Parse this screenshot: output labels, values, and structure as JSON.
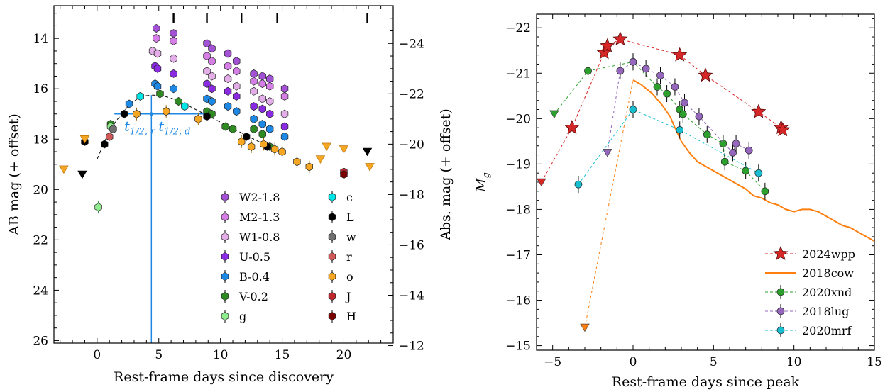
{
  "chart_data": [
    {
      "type": "scatter",
      "xlabel": "Rest-frame days since discovery",
      "ylabel": "AB mag (+ offset)",
      "y2label": "Abs. mag (+ offset)",
      "xlim": [
        -3.5,
        24
      ],
      "ylim": [
        26.1,
        12.7
      ],
      "y2lim": [
        -12.1,
        -25.5
      ],
      "y_inverted": true,
      "xticks": [
        0,
        5,
        10,
        15,
        20
      ],
      "yticks": [
        14,
        16,
        18,
        20,
        22,
        24,
        26
      ],
      "y2ticks": [
        -24,
        -22,
        -20,
        -18,
        -16,
        -14,
        -12
      ],
      "top_markers_x": [
        6.2,
        8.9,
        11.7,
        14.6,
        21.9
      ],
      "template_curve": [
        [
          0,
          18.8
        ],
        [
          0.7,
          18.0
        ],
        [
          1.5,
          17.3
        ],
        [
          2.5,
          16.7
        ],
        [
          3.5,
          16.3
        ],
        [
          4.5,
          16.25
        ],
        [
          5.5,
          16.3
        ],
        [
          6.5,
          16.45
        ],
        [
          7.5,
          16.7
        ],
        [
          8.5,
          16.95
        ],
        [
          9.5,
          17.2
        ],
        [
          10.5,
          17.45
        ],
        [
          11.5,
          17.7
        ],
        [
          12.5,
          17.95
        ],
        [
          13.5,
          18.2
        ],
        [
          14.5,
          18.45
        ]
      ],
      "annotations": {
        "peak_x": 4.4,
        "half_level_mag": 17.0,
        "t_half_rise_x": 1.4,
        "t_half_decline_x": 8.9,
        "t_half_rise_label_main": "t",
        "t_half_rise_label_sub": "1/2, r",
        "t_half_decline_label_main": "t",
        "t_half_decline_label_sub": "1/2, d"
      },
      "legend": {
        "placement": "lower-right",
        "entries": [
          {
            "label": "W2-1.8",
            "color": "#a352d6"
          },
          {
            "label": "M2-1.3",
            "color": "#d57ee6"
          },
          {
            "label": "W1-0.8",
            "color": "#e3aee8"
          },
          {
            "label": "U-0.5",
            "color": "#8a2be2"
          },
          {
            "label": "B-0.4",
            "color": "#1e88e5"
          },
          {
            "label": "V-0.2",
            "color": "#2e8b22"
          },
          {
            "label": "g",
            "color": "#90ee90"
          },
          {
            "label": "c",
            "color": "#00e5e5"
          },
          {
            "label": "L",
            "color": "#000000"
          },
          {
            "label": "w",
            "color": "#707070"
          },
          {
            "label": "r",
            "color": "#d05a5a"
          },
          {
            "label": "o",
            "color": "#f5a623"
          },
          {
            "label": "J",
            "color": "#c0282d"
          },
          {
            "label": "H",
            "color": "#7a0000"
          }
        ]
      },
      "series": [
        {
          "name": "W2-1.8",
          "color": "#a352d6",
          "marker": "hexagon",
          "points": [
            [
              4.8,
              13.6
            ],
            [
              6.2,
              13.8
            ],
            [
              8.9,
              14.2
            ],
            [
              9.3,
              14.4
            ],
            [
              10.6,
              14.6
            ],
            [
              11.3,
              14.9
            ],
            [
              12.7,
              15.4
            ],
            [
              13.4,
              15.5
            ],
            [
              14.0,
              15.6
            ],
            [
              15.2,
              16.0
            ]
          ]
        },
        {
          "name": "M2-1.3",
          "color": "#d57ee6",
          "marker": "hexagon",
          "points": [
            [
              4.8,
              14.0
            ],
            [
              6.2,
              14.1
            ],
            [
              8.9,
              14.7
            ],
            [
              9.3,
              14.9
            ],
            [
              10.6,
              15.1
            ],
            [
              11.3,
              15.3
            ],
            [
              12.7,
              15.7
            ],
            [
              13.4,
              15.8
            ],
            [
              14.0,
              15.9
            ],
            [
              15.2,
              16.3
            ]
          ]
        },
        {
          "name": "W1-0.8",
          "color": "#e3aee8",
          "marker": "hexagon",
          "points": [
            [
              4.5,
              14.5
            ],
            [
              4.9,
              14.6
            ],
            [
              6.2,
              14.8
            ],
            [
              8.9,
              15.3
            ],
            [
              9.3,
              15.5
            ],
            [
              10.6,
              15.6
            ],
            [
              11.3,
              15.9
            ],
            [
              12.7,
              16.1
            ],
            [
              13.4,
              16.4
            ],
            [
              14.0,
              16.5
            ],
            [
              15.2,
              17.0
            ]
          ]
        },
        {
          "name": "U-0.5",
          "color": "#8a2be2",
          "marker": "hexagon",
          "points": [
            [
              4.7,
              15.1
            ],
            [
              4.9,
              15.2
            ],
            [
              6.2,
              15.4
            ],
            [
              8.9,
              15.8
            ],
            [
              9.3,
              16.0
            ],
            [
              10.6,
              16.1
            ],
            [
              11.3,
              16.3
            ],
            [
              12.7,
              16.7
            ],
            [
              13.4,
              16.8
            ],
            [
              14.0,
              17.0
            ],
            [
              15.2,
              17.5
            ]
          ]
        },
        {
          "name": "B-0.4",
          "color": "#1e88e5",
          "marker": "hexagon",
          "points": [
            [
              2.6,
              16.6
            ],
            [
              4.7,
              15.8
            ],
            [
              4.9,
              15.9
            ],
            [
              6.2,
              16.0
            ],
            [
              8.9,
              16.4
            ],
            [
              9.3,
              16.5
            ],
            [
              10.6,
              16.7
            ],
            [
              11.3,
              16.9
            ],
            [
              12.7,
              17.2
            ],
            [
              13.4,
              17.4
            ],
            [
              14.0,
              17.6
            ],
            [
              15.2,
              17.9
            ]
          ]
        },
        {
          "name": "V-0.2",
          "color": "#2e8b22",
          "marker": "hexagon",
          "points": [
            [
              1.1,
              17.4
            ],
            [
              5.1,
              16.2
            ],
            [
              6.6,
              16.5
            ],
            [
              8.9,
              16.9
            ],
            [
              9.3,
              17.0
            ],
            [
              10.4,
              17.5
            ],
            [
              11.0,
              17.6
            ],
            [
              12.7,
              17.6
            ],
            [
              13.4,
              17.8
            ],
            [
              14.0,
              18.3
            ]
          ]
        },
        {
          "name": "g",
          "color": "#90ee90",
          "marker": "hexagon",
          "points": [
            [
              0.1,
              20.7
            ],
            [
              1.1,
              17.5
            ]
          ]
        },
        {
          "name": "c",
          "color": "#00e5e5",
          "marker": "hexagon",
          "points": [
            [
              3.5,
              16.3
            ],
            [
              7.1,
              16.7
            ]
          ]
        },
        {
          "name": "L",
          "color": "#000000",
          "marker": "hexagon",
          "points": [
            [
              -1.0,
              18.1
            ],
            [
              0.6,
              18.2
            ],
            [
              2.2,
              17.0
            ],
            [
              8.9,
              17.1
            ],
            [
              12.1,
              17.9
            ],
            [
              13.8,
              18.3
            ]
          ]
        },
        {
          "name": "w",
          "color": "#707070",
          "marker": "hexagon",
          "points": [
            [
              1.3,
              17.6
            ]
          ]
        },
        {
          "name": "r",
          "color": "#d05a5a",
          "marker": "hexagon",
          "points": [
            [
              1.0,
              17.9
            ]
          ]
        },
        {
          "name": "o",
          "color": "#f5a623",
          "marker": "hexagon",
          "points": [
            [
              3.2,
              17.0
            ],
            [
              5.6,
              16.9
            ],
            [
              8.2,
              17.2
            ],
            [
              11.7,
              18.1
            ],
            [
              12.5,
              18.3
            ],
            [
              13.5,
              18.2
            ],
            [
              14.4,
              18.4
            ],
            [
              15.0,
              18.5
            ],
            [
              16.2,
              18.9
            ],
            [
              17.2,
              19.1
            ]
          ]
        },
        {
          "name": "J",
          "color": "#c0282d",
          "marker": "hexagon",
          "points": [
            [
              20.0,
              19.3
            ]
          ]
        },
        {
          "name": "H",
          "color": "#7a0000",
          "marker": "hexagon",
          "points": [
            [
              20.0,
              19.4
            ]
          ]
        },
        {
          "name": "o limits",
          "color": "#f5a623",
          "marker": "triangle-down",
          "points": [
            [
              -2.7,
              19.2
            ],
            [
              -1.0,
              18.0
            ],
            [
              18.1,
              18.8
            ],
            [
              18.6,
              18.3
            ],
            [
              20.0,
              18.4
            ],
            [
              22.1,
              19.1
            ]
          ]
        },
        {
          "name": "L limits",
          "color": "#000000",
          "marker": "triangle-down",
          "points": [
            [
              -1.2,
              19.4
            ],
            [
              21.9,
              18.5
            ]
          ]
        }
      ]
    },
    {
      "type": "line",
      "xlabel": "Rest-frame days since peak",
      "ylabel_main": "M",
      "ylabel_sub": "g",
      "xlim": [
        -6,
        15
      ],
      "ylim": [
        -14.9,
        -22.3
      ],
      "y_inverted": true,
      "xticks": [
        -5,
        0,
        5,
        10,
        15
      ],
      "yticks": [
        -15,
        -16,
        -17,
        -18,
        -19,
        -20,
        -21,
        -22
      ],
      "legend": {
        "placement": "lower-right",
        "entries": [
          {
            "label": "2024wpp",
            "color": "#d62728",
            "marker": "star",
            "style": "dashed"
          },
          {
            "label": "2018cow",
            "color": "#ff7f0e",
            "marker": "none",
            "style": "solid"
          },
          {
            "label": "2020xnd",
            "color": "#2ca02c",
            "marker": "circle",
            "style": "dashed"
          },
          {
            "label": "2018lug",
            "color": "#9467bd",
            "marker": "circle",
            "style": "dashed"
          },
          {
            "label": "2020mrf",
            "color": "#17becf",
            "marker": "circle",
            "style": "dashed"
          }
        ]
      },
      "series": [
        {
          "name": "2024wpp",
          "color": "#d62728",
          "marker": "star",
          "style": "dashed",
          "upper_limit_first": true,
          "x": [
            -5.7,
            -3.8,
            -1.8,
            -1.6,
            -0.8,
            2.9,
            4.5,
            7.8,
            9.2,
            9.3
          ],
          "y": [
            -18.6,
            -19.8,
            -21.45,
            -21.6,
            -21.75,
            -21.4,
            -20.95,
            -20.15,
            -19.8,
            -19.75
          ]
        },
        {
          "name": "2018cow",
          "color": "#ff7f0e",
          "marker": "none",
          "style": "solid",
          "x": [
            0.0,
            0.5,
            1.2,
            1.8,
            2.3,
            2.6,
            3.0,
            3.5,
            4.0,
            4.5,
            5.0,
            5.5,
            6.0,
            6.5,
            7.0,
            7.5,
            8.0,
            8.5,
            9.0,
            9.5,
            10.0,
            10.5,
            11.0,
            11.5,
            12.0,
            12.5,
            13.0,
            13.5,
            14.0,
            14.5,
            15.0
          ],
          "y": [
            -20.85,
            -20.75,
            -20.55,
            -20.3,
            -20.05,
            -19.8,
            -19.5,
            -19.25,
            -19.05,
            -18.95,
            -18.85,
            -18.75,
            -18.65,
            -18.55,
            -18.45,
            -18.3,
            -18.25,
            -18.15,
            -18.1,
            -18.0,
            -17.95,
            -18.0,
            -18.0,
            -17.95,
            -17.85,
            -17.75,
            -17.65,
            -17.6,
            -17.5,
            -17.4,
            -17.3
          ]
        },
        {
          "name": "2018cow early",
          "color": "#ff7f0e",
          "marker": "triangle-down",
          "style": "dashed",
          "x": [
            -3.0,
            0.0
          ],
          "y": [
            -15.4,
            -20.85
          ]
        },
        {
          "name": "2020xnd",
          "color": "#2ca02c",
          "marker": "circle",
          "style": "dashed",
          "upper_limit_first": true,
          "x": [
            -4.9,
            -2.8,
            0.0,
            1.5,
            2.1,
            2.9,
            3.1,
            4.6,
            5.6,
            5.7,
            7.0,
            8.2
          ],
          "y": [
            -20.1,
            -21.05,
            -21.25,
            -20.7,
            -20.55,
            -20.2,
            -20.1,
            -19.65,
            -19.45,
            -19.05,
            -18.85,
            -18.4
          ]
        },
        {
          "name": "2018lug",
          "color": "#9467bd",
          "marker": "circle",
          "style": "dashed",
          "upper_limit_first": true,
          "x": [
            -1.6,
            -0.8,
            0.0,
            0.8,
            1.7,
            2.6,
            3.2,
            4.1,
            6.2,
            6.4,
            7.2
          ],
          "y": [
            -19.25,
            -21.05,
            -21.25,
            -21.1,
            -20.95,
            -20.7,
            -20.35,
            -20.05,
            -19.25,
            -19.45,
            -19.3
          ]
        },
        {
          "name": "2020mrf",
          "color": "#17becf",
          "marker": "circle",
          "style": "dashed",
          "x": [
            -3.4,
            0.0,
            2.9,
            7.8
          ],
          "y": [
            -18.55,
            -20.2,
            -19.75,
            -18.8
          ]
        }
      ]
    }
  ]
}
